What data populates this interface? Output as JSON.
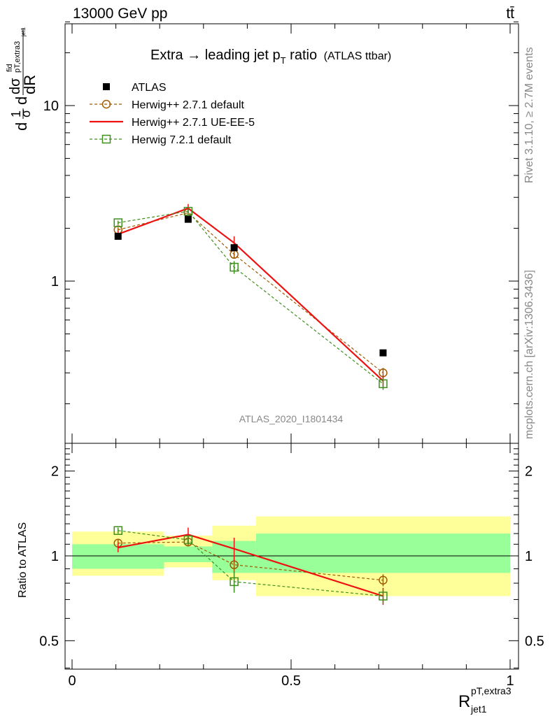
{
  "header": {
    "left": "13000 GeV pp",
    "right": "tt̄"
  },
  "side": {
    "rivet": "Rivet 3.1.10, ≥ 2.7M events",
    "mcplots": "mcplots.cern.ch [arXiv:1306.3436]"
  },
  "chart_data": {
    "type": "line",
    "title": "Extra → leading jet p",
    "title_sub": "T",
    "title_tail": " ratio",
    "title_note": "(ATLAS ttbar)",
    "analysis_label": "ATLAS_2020_I1801434",
    "ylabel_main": {
      "d1": "d",
      "one": "1",
      "sigma": "σ",
      "d2": "d",
      "dsigma": "dσ",
      "fid": "fid",
      "pt": "pT,extra3",
      "jet1": "jet1",
      "dR": "dR"
    },
    "ylabel_ratio": "Ratio to ATLAS",
    "xlabel": {
      "main": "R",
      "sup": "pT,extra3",
      "sub": "jet1"
    },
    "x_ticklabels": [
      "0",
      "0.5",
      "1"
    ],
    "y_ticklabels_main": [
      "1",
      "10"
    ],
    "y_ticklabels_ratio": [
      "0.5",
      "1",
      "2"
    ],
    "xlim": [
      0,
      1
    ],
    "ylim_main": [
      0.2,
      30
    ],
    "yscale_main": "log",
    "ylim_ratio": [
      0.4,
      2.4
    ],
    "yscale_ratio": "log",
    "legend_position": "top-left",
    "bins": [
      [
        0.0,
        0.21
      ],
      [
        0.21,
        0.32
      ],
      [
        0.32,
        0.42
      ],
      [
        0.42,
        1.0
      ]
    ],
    "x": [
      0.105,
      0.265,
      0.37,
      0.71
    ],
    "series": [
      {
        "name": "ATLAS",
        "style": "data",
        "color": "#000000",
        "values": [
          1.8,
          2.25,
          1.55,
          0.39
        ],
        "band_stat": [
          [
            0.9,
            1.1
          ],
          [
            0.95,
            1.08
          ],
          [
            0.87,
            1.13
          ],
          [
            0.87,
            1.2
          ]
        ],
        "band_total": [
          [
            0.85,
            1.22
          ],
          [
            0.91,
            1.18
          ],
          [
            0.82,
            1.28
          ],
          [
            0.72,
            1.38
          ]
        ]
      },
      {
        "name": "Herwig++ 2.7.1 default",
        "style": "circle",
        "color": "#a05a00",
        "values": [
          1.96,
          2.45,
          1.42,
          0.3
        ],
        "errors": [
          0.06,
          0.08,
          0.08,
          0.02
        ],
        "ratio": [
          1.11,
          1.12,
          0.93,
          0.82
        ],
        "ratio_err": [
          0.03,
          0.04,
          0.06,
          0.04
        ]
      },
      {
        "name": "Herwig++ 2.7.1 UE-EE-5",
        "style": "solid",
        "color": "#ee1111",
        "values": [
          1.85,
          2.6,
          1.65,
          0.27
        ],
        "errors": [
          0.08,
          0.15,
          0.15,
          0.02
        ],
        "ratio": [
          1.07,
          1.19,
          1.06,
          0.72
        ],
        "ratio_err": [
          0.04,
          0.07,
          0.1,
          0.05
        ]
      },
      {
        "name": "Herwig 7.2.1 default",
        "style": "square",
        "color": "#3f8f1f",
        "values": [
          2.15,
          2.5,
          1.2,
          0.26
        ],
        "errors": [
          0.06,
          0.08,
          0.1,
          0.02
        ],
        "ratio": [
          1.23,
          1.14,
          0.81,
          0.72
        ],
        "ratio_err": [
          0.03,
          0.04,
          0.07,
          0.04
        ]
      }
    ]
  },
  "colors": {
    "band_inner": "#99ff99",
    "band_outer": "#ffff99",
    "analysis_label": "#888888"
  }
}
